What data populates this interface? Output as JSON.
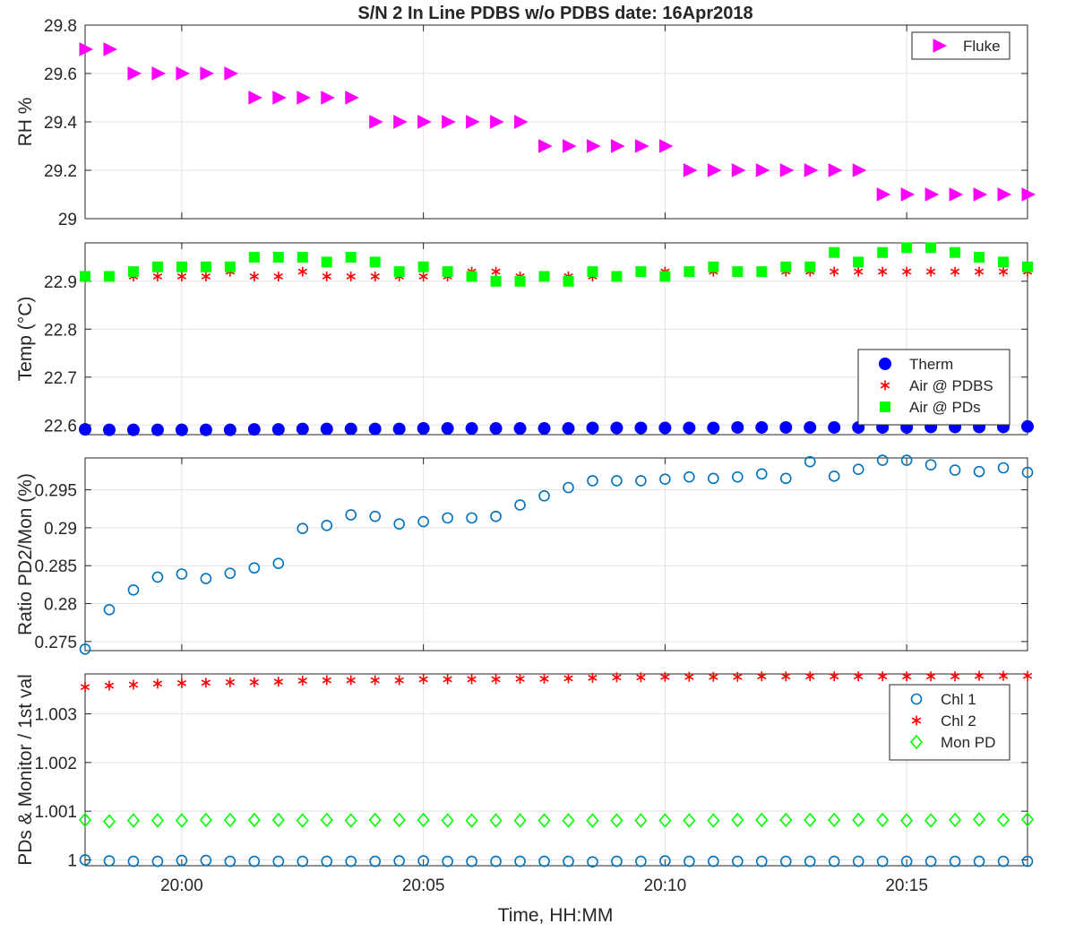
{
  "chart_data": [
    {
      "type": "scatter",
      "title": "S/N 2 In Line PDBS w/o PDBS date: 16Apr2018",
      "ylabel": "RH %",
      "ylim": [
        29,
        29.8
      ],
      "yticks": [
        "29",
        "29.2",
        "29.4",
        "29.6",
        "29.8"
      ],
      "ytick_values": [
        29,
        29.2,
        29.4,
        29.6,
        29.8
      ],
      "grid": true,
      "legend_placement": "top-right",
      "series": [
        {
          "name": "Fluke",
          "marker": "triangle-right",
          "color": "#ff00ff",
          "filled": true,
          "values": [
            29.7,
            29.7,
            29.6,
            29.6,
            29.6,
            29.6,
            29.6,
            29.5,
            29.5,
            29.5,
            29.5,
            29.5,
            29.4,
            29.4,
            29.4,
            29.4,
            29.4,
            29.4,
            29.4,
            29.3,
            29.3,
            29.3,
            29.3,
            29.3,
            29.3,
            29.2,
            29.2,
            29.2,
            29.2,
            29.2,
            29.2,
            29.2,
            29.2,
            29.1,
            29.1,
            29.1,
            29.1,
            29.1,
            29.1,
            29.1
          ]
        }
      ]
    },
    {
      "type": "scatter",
      "ylabel": "Temp (°C)",
      "ylim": [
        22.58,
        22.98
      ],
      "yticks": [
        "22.6",
        "22.7",
        "22.8",
        "22.9"
      ],
      "ytick_values": [
        22.6,
        22.7,
        22.8,
        22.9
      ],
      "grid": true,
      "legend_placement": "bottom-right",
      "series": [
        {
          "name": "Therm",
          "marker": "circle",
          "color": "#0000ff",
          "filled": true,
          "values": [
            22.591,
            22.59,
            22.59,
            22.59,
            22.59,
            22.59,
            22.59,
            22.591,
            22.591,
            22.592,
            22.592,
            22.592,
            22.592,
            22.592,
            22.593,
            22.593,
            22.593,
            22.593,
            22.593,
            22.593,
            22.593,
            22.594,
            22.594,
            22.594,
            22.594,
            22.594,
            22.594,
            22.595,
            22.595,
            22.595,
            22.595,
            22.595,
            22.595,
            22.595,
            22.595,
            22.596,
            22.596,
            22.596,
            22.596,
            22.597
          ]
        },
        {
          "name": "Air @ PDBS",
          "marker": "asterisk",
          "color": "#ff0000",
          "filled": false,
          "values": [
            22.91,
            22.91,
            22.91,
            22.91,
            22.91,
            22.91,
            22.92,
            22.91,
            22.91,
            22.92,
            22.91,
            22.91,
            22.91,
            22.91,
            22.91,
            22.91,
            22.92,
            22.92,
            22.91,
            22.91,
            22.91,
            22.91,
            22.91,
            22.92,
            22.92,
            22.92,
            22.92,
            22.92,
            22.92,
            22.92,
            22.92,
            22.92,
            22.92,
            22.92,
            22.92,
            22.92,
            22.92,
            22.92,
            22.92,
            22.92
          ]
        },
        {
          "name": "Air @ PDs",
          "marker": "square",
          "color": "#00ff00",
          "filled": true,
          "values": [
            22.91,
            22.91,
            22.92,
            22.93,
            22.93,
            22.93,
            22.93,
            22.95,
            22.95,
            22.95,
            22.94,
            22.95,
            22.94,
            22.92,
            22.93,
            22.92,
            22.91,
            22.9,
            22.9,
            22.91,
            22.9,
            22.92,
            22.91,
            22.92,
            22.91,
            22.92,
            22.93,
            22.92,
            22.92,
            22.93,
            22.93,
            22.96,
            22.94,
            22.96,
            22.97,
            22.97,
            22.96,
            22.95,
            22.94,
            22.93
          ]
        }
      ]
    },
    {
      "type": "scatter",
      "ylabel": "Ratio PD2/Mon (%)",
      "ylim": [
        0.2738,
        0.2992
      ],
      "yticks": [
        "0.275",
        "0.28",
        "0.285",
        "0.29",
        "0.295"
      ],
      "ytick_values": [
        0.275,
        0.28,
        0.285,
        0.29,
        0.295
      ],
      "grid": true,
      "series": [
        {
          "marker": "circle",
          "color": "#0072bd",
          "filled": false,
          "values": [
            0.274,
            0.2792,
            0.2818,
            0.2835,
            0.2839,
            0.2833,
            0.284,
            0.2847,
            0.2853,
            0.2899,
            0.2903,
            0.2917,
            0.2915,
            0.2905,
            0.2908,
            0.2913,
            0.2913,
            0.2915,
            0.293,
            0.2942,
            0.2953,
            0.2962,
            0.2962,
            0.2962,
            0.2964,
            0.2967,
            0.2965,
            0.2967,
            0.2971,
            0.2965,
            0.2987,
            0.2968,
            0.2977,
            0.2989,
            0.2989,
            0.2983,
            0.2976,
            0.2974,
            0.2979,
            0.2973
          ]
        }
      ]
    },
    {
      "type": "scatter",
      "ylabel": "PDs & Monitor / 1st val",
      "xlabel": "Time, HH:MM",
      "ylim": [
        0.99988,
        1.00382
      ],
      "yticks": [
        "1",
        "1.001",
        "1.002",
        "1.003"
      ],
      "ytick_values": [
        1,
        1.001,
        1.002,
        1.003
      ],
      "xticks": [
        "20:00",
        "20:05",
        "20:10",
        "20:15"
      ],
      "xtick_minutes": [
        2,
        7,
        12,
        17
      ],
      "x_start_minute": 0,
      "x_end_minute": 19.5,
      "x_step_minutes": 0.5,
      "grid": true,
      "legend_placement": "top-right",
      "series": [
        {
          "name": "Chl 1",
          "marker": "circle",
          "color": "#0072bd",
          "filled": false,
          "values": [
            1.0,
            0.99998,
            0.99997,
            0.99997,
            0.99999,
            0.99999,
            0.99997,
            0.99997,
            0.99997,
            0.99997,
            0.99997,
            0.99997,
            0.99997,
            0.99998,
            0.99998,
            0.99997,
            0.99997,
            0.99997,
            0.99997,
            0.99997,
            0.99997,
            0.99996,
            0.99997,
            0.99997,
            0.99998,
            0.99997,
            0.99997,
            0.99997,
            0.99997,
            0.99997,
            0.99997,
            0.99997,
            0.99997,
            0.99997,
            0.99997,
            0.99997,
            0.99997,
            0.99997,
            0.99997,
            0.99997
          ]
        },
        {
          "name": "Chl 2",
          "marker": "asterisk",
          "color": "#ff0000",
          "filled": false,
          "values": [
            1.00355,
            1.00358,
            1.0036,
            1.00362,
            1.00363,
            1.00364,
            1.00365,
            1.00365,
            1.00366,
            1.00368,
            1.00369,
            1.00369,
            1.00369,
            1.00369,
            1.00371,
            1.00371,
            1.00371,
            1.00371,
            1.00372,
            1.00372,
            1.00373,
            1.00374,
            1.00375,
            1.00375,
            1.00376,
            1.00376,
            1.00376,
            1.00376,
            1.00377,
            1.00377,
            1.00377,
            1.00377,
            1.00377,
            1.00377,
            1.00377,
            1.00377,
            1.00377,
            1.00378,
            1.00378,
            1.00378
          ]
        },
        {
          "name": "Mon PD",
          "marker": "diamond",
          "color": "#00ff00",
          "filled": false,
          "values": [
            1.00082,
            1.00079,
            1.00081,
            1.00081,
            1.00081,
            1.00082,
            1.00082,
            1.00082,
            1.00082,
            1.00081,
            1.00082,
            1.00081,
            1.00082,
            1.00082,
            1.00082,
            1.00081,
            1.00081,
            1.00081,
            1.00081,
            1.00081,
            1.00081,
            1.00081,
            1.00081,
            1.00081,
            1.00081,
            1.00081,
            1.00081,
            1.00082,
            1.00082,
            1.00082,
            1.00082,
            1.00082,
            1.00082,
            1.00082,
            1.00081,
            1.00081,
            1.00082,
            1.00083,
            1.00082,
            1.00083
          ]
        }
      ]
    }
  ]
}
